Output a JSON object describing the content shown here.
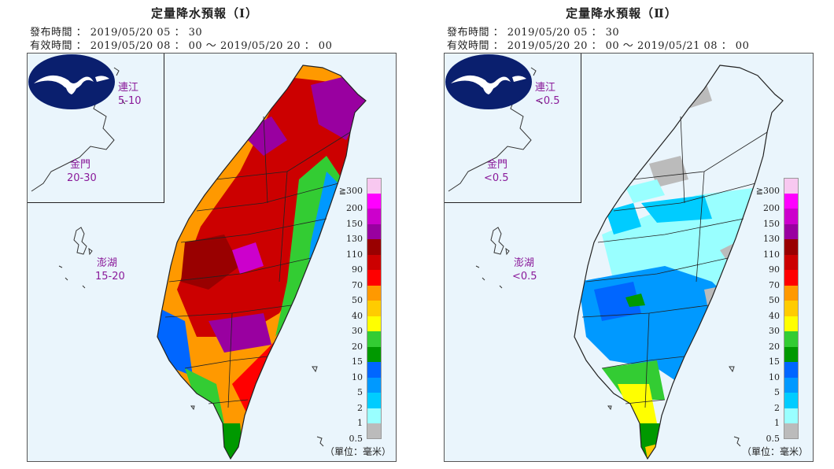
{
  "panels": [
    {
      "title": "定量降水預報（Ⅰ）",
      "issue_line": "發布時間 ： 2019/05/20  05 ： 30",
      "valid_line": "有效時間 ： 2019/05/20  08 ： 00  ～  2019/05/20  20 ： 00",
      "islands": {
        "lienchiang": {
          "name": "連江",
          "value": "5-10"
        },
        "kinmen": {
          "name": "金門",
          "value": "20-30"
        },
        "penghu": {
          "name": "澎湖",
          "value": "15-20"
        }
      },
      "unit": "（單位：毫米）"
    },
    {
      "title": "定量降水預報（Ⅱ）",
      "issue_line": "發布時間 ： 2019/05/20  05 ： 30",
      "valid_line": "有效時間 ： 2019/05/20  20 ： 00  ～  2019/05/21  08 ： 00",
      "islands": {
        "lienchiang": {
          "name": "連江",
          "value": "<0.5"
        },
        "kinmen": {
          "name": "金門",
          "value": "<0.5"
        },
        "penghu": {
          "name": "澎湖",
          "value": "<0.5"
        }
      },
      "unit": "（單位：毫米）"
    }
  ],
  "legend": {
    "labels": [
      "≧300",
      "200",
      "150",
      "130",
      "110",
      "90",
      "70",
      "50",
      "40",
      "30",
      "20",
      "15",
      "10",
      "5",
      "2",
      "1",
      "0.5"
    ],
    "colors": [
      "#f8c8f0",
      "#ff00ff",
      "#cc00cc",
      "#9900a0",
      "#990000",
      "#cc0000",
      "#ff0000",
      "#ff9900",
      "#ffcc00",
      "#ffff00",
      "#33cc33",
      "#009900",
      "#0066ff",
      "#0099ff",
      "#00ccff",
      "#99ffff",
      "#bbbbbb"
    ]
  },
  "colors": {
    "sea": "#eaf5fc",
    "island_label": "#8a1a9a",
    "logo_fill": "#0a1f6e"
  }
}
